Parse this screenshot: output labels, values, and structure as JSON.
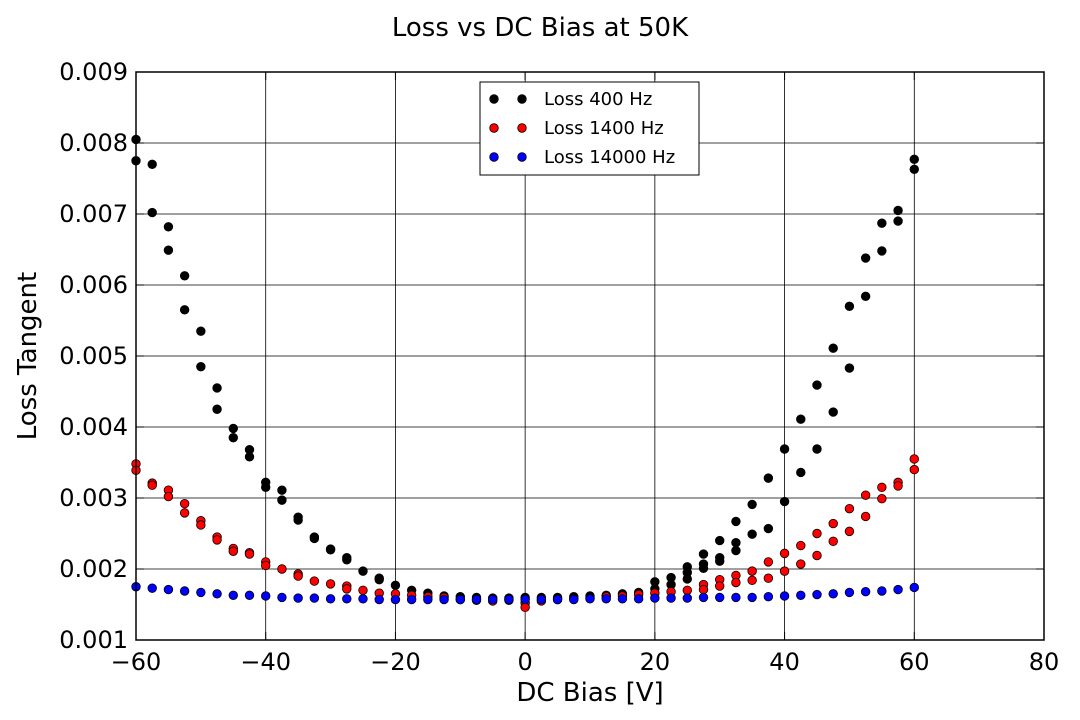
{
  "chart_data": {
    "type": "scatter",
    "title": "Loss vs DC Bias at 50K",
    "xlabel": "DC Bias [V]",
    "ylabel": "Loss Tangent",
    "xlim": [
      -60,
      80
    ],
    "ylim": [
      0.001,
      0.009
    ],
    "xticks": [
      -60,
      -40,
      -20,
      0,
      20,
      40,
      60,
      80
    ],
    "xtick_labels": [
      "−60",
      "−40",
      "−20",
      "0",
      "20",
      "40",
      "60",
      "80"
    ],
    "yticks": [
      0.001,
      0.002,
      0.003,
      0.004,
      0.005,
      0.006,
      0.007,
      0.008,
      0.009
    ],
    "ytick_labels": [
      "0.001",
      "0.002",
      "0.003",
      "0.004",
      "0.005",
      "0.006",
      "0.007",
      "0.008",
      "0.009"
    ],
    "grid": true,
    "legend_position": "upper-center",
    "series": [
      {
        "name": "Loss 400 Hz",
        "color": "#000000",
        "x": [
          -60,
          -60,
          -57.5,
          -57.5,
          -55,
          -55,
          -52.5,
          -52.5,
          -50,
          -50,
          -47.5,
          -47.5,
          -45,
          -45,
          -42.5,
          -42.5,
          -40,
          -40,
          -37.5,
          -37.5,
          -35,
          -35,
          -32.5,
          -32.5,
          -30,
          -30,
          -27.5,
          -27.5,
          -25,
          -22.5,
          -22.5,
          -20,
          -17.5,
          -15,
          -12.5,
          -10,
          -7.5,
          -5,
          -2.5,
          0,
          2.5,
          5,
          7.5,
          10,
          12.5,
          15,
          17.5,
          20,
          20,
          22.5,
          22.5,
          25,
          25,
          25,
          27.5,
          27.5,
          27.5,
          30,
          30,
          30,
          32.5,
          32.5,
          32.5,
          35,
          35,
          37.5,
          37.5,
          40,
          40,
          42.5,
          42.5,
          45,
          45,
          47.5,
          47.5,
          50,
          50,
          52.5,
          52.5,
          55,
          55,
          57.5,
          57.5,
          60,
          60
        ],
        "y": [
          0.00805,
          0.00775,
          0.0077,
          0.00702,
          0.00682,
          0.00649,
          0.00613,
          0.00565,
          0.00535,
          0.00485,
          0.00455,
          0.00425,
          0.00398,
          0.00385,
          0.00368,
          0.00358,
          0.00322,
          0.00315,
          0.00311,
          0.00297,
          0.00273,
          0.00269,
          0.00245,
          0.00243,
          0.00228,
          0.00227,
          0.00216,
          0.00213,
          0.00197,
          0.00187,
          0.00185,
          0.00177,
          0.0017,
          0.00166,
          0.00162,
          0.00161,
          0.0016,
          0.00159,
          0.00159,
          0.0016,
          0.0016,
          0.0016,
          0.00161,
          0.00162,
          0.00163,
          0.00165,
          0.00167,
          0.00172,
          0.00182,
          0.00178,
          0.00188,
          0.00203,
          0.00195,
          0.00186,
          0.00221,
          0.00207,
          0.00201,
          0.0024,
          0.00216,
          0.00211,
          0.00267,
          0.00237,
          0.00226,
          0.00291,
          0.00249,
          0.00328,
          0.00257,
          0.00369,
          0.00295,
          0.00411,
          0.00336,
          0.00459,
          0.00369,
          0.00511,
          0.00421,
          0.0057,
          0.00483,
          0.00638,
          0.00584,
          0.00687,
          0.00648,
          0.00705,
          0.0069,
          0.00777,
          0.00763
        ]
      },
      {
        "name": "Loss 1400 Hz",
        "color": "#ff0000",
        "x": [
          -60,
          -60,
          -57.5,
          -57.5,
          -55,
          -55,
          -52.5,
          -52.5,
          -50,
          -50,
          -47.5,
          -47.5,
          -45,
          -45,
          -42.5,
          -42.5,
          -40,
          -40,
          -37.5,
          -35,
          -35,
          -32.5,
          -30,
          -27.5,
          -27.5,
          -25,
          -22.5,
          -20,
          -17.5,
          -15,
          -12.5,
          -10,
          -7.5,
          -5,
          -2.5,
          0,
          0,
          2.5,
          5,
          7.5,
          10,
          12.5,
          15,
          17.5,
          20,
          22.5,
          25,
          27.5,
          27.5,
          30,
          30,
          32.5,
          32.5,
          35,
          35,
          37.5,
          37.5,
          40,
          40,
          42.5,
          42.5,
          45,
          45,
          47.5,
          47.5,
          50,
          50,
          52.5,
          52.5,
          55,
          55,
          57.5,
          57.5,
          60,
          60
        ],
        "y": [
          0.00348,
          0.00339,
          0.00321,
          0.00318,
          0.00311,
          0.00302,
          0.00292,
          0.00279,
          0.00268,
          0.00262,
          0.00245,
          0.00241,
          0.00229,
          0.00225,
          0.00223,
          0.00221,
          0.0021,
          0.00205,
          0.002,
          0.00193,
          0.0019,
          0.00183,
          0.00179,
          0.00176,
          0.00172,
          0.0017,
          0.00166,
          0.00165,
          0.00163,
          0.00161,
          0.0016,
          0.00157,
          0.00156,
          0.00155,
          0.00156,
          0.00152,
          0.00146,
          0.00155,
          0.00157,
          0.00158,
          0.00159,
          0.00161,
          0.00162,
          0.00164,
          0.00166,
          0.00168,
          0.0017,
          0.00178,
          0.00171,
          0.00185,
          0.00176,
          0.00191,
          0.00181,
          0.00197,
          0.00184,
          0.0021,
          0.00187,
          0.00222,
          0.00197,
          0.00233,
          0.00207,
          0.0025,
          0.00219,
          0.00264,
          0.00239,
          0.00285,
          0.00253,
          0.00304,
          0.00274,
          0.00315,
          0.00299,
          0.00322,
          0.00317,
          0.00355,
          0.0034
        ]
      },
      {
        "name": "Loss 14000 Hz",
        "color": "#0000ff",
        "x": [
          -60,
          -57.5,
          -55,
          -52.5,
          -50,
          -47.5,
          -45,
          -42.5,
          -40,
          -37.5,
          -35,
          -32.5,
          -30,
          -27.5,
          -25,
          -22.5,
          -20,
          -17.5,
          -15,
          -12.5,
          -10,
          -7.5,
          -5,
          -2.5,
          0,
          2.5,
          5,
          7.5,
          10,
          12.5,
          15,
          17.5,
          20,
          22.5,
          25,
          27.5,
          30,
          32.5,
          35,
          37.5,
          40,
          42.5,
          45,
          47.5,
          50,
          52.5,
          55,
          57.5,
          60
        ],
        "y": [
          0.00175,
          0.00173,
          0.00171,
          0.00169,
          0.00167,
          0.00165,
          0.00163,
          0.00163,
          0.00162,
          0.0016,
          0.00159,
          0.00159,
          0.00158,
          0.00158,
          0.00158,
          0.00157,
          0.00157,
          0.00157,
          0.00157,
          0.00157,
          0.00157,
          0.00157,
          0.00157,
          0.00157,
          0.00157,
          0.00157,
          0.00157,
          0.00157,
          0.00158,
          0.00158,
          0.00158,
          0.00158,
          0.00159,
          0.00159,
          0.00159,
          0.0016,
          0.0016,
          0.0016,
          0.0016,
          0.00161,
          0.00162,
          0.00163,
          0.00164,
          0.00165,
          0.00167,
          0.00168,
          0.00169,
          0.00171,
          0.00174
        ]
      }
    ]
  }
}
